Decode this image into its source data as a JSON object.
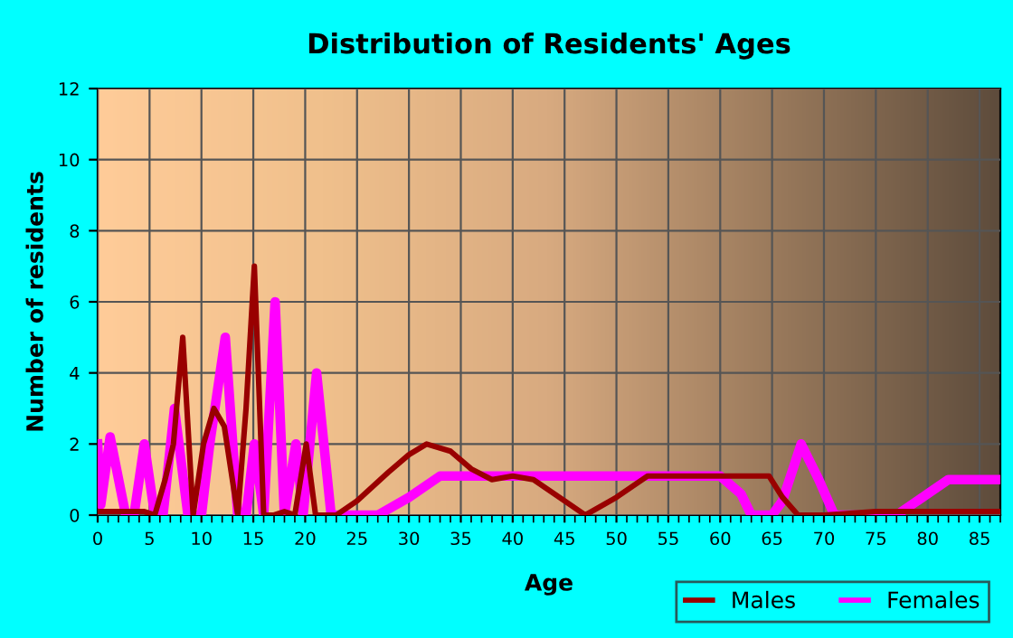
{
  "chart_data": {
    "type": "line",
    "title": "Distribution of Residents' Ages",
    "xlabel": "Age",
    "ylabel": "Number of residents",
    "xlim": [
      0,
      87
    ],
    "xticks": [
      0,
      5,
      10,
      15,
      20,
      25,
      30,
      35,
      40,
      45,
      50,
      55,
      60,
      65,
      70,
      75,
      80,
      85
    ],
    "ylim": [
      0,
      12
    ],
    "yticks": [
      0,
      2,
      4,
      6,
      8,
      10,
      12
    ],
    "grid": true,
    "legend": "bottom right",
    "marker": "none",
    "line_style": "solid",
    "series": [
      {
        "name": "Males",
        "color": "#990000",
        "x": [
          0,
          1,
          3,
          4.5,
          5.5,
          6.5,
          7.3,
          8.2,
          9.2,
          10.2,
          11.2,
          12.2,
          13.5,
          14.3,
          15.1,
          16,
          17,
          18,
          19,
          20.1,
          21,
          22,
          23,
          25,
          28,
          30,
          31.7,
          34,
          36,
          38,
          40,
          42,
          45,
          47,
          50,
          53,
          55,
          60,
          63,
          64.7,
          66,
          67.5,
          70,
          75,
          80,
          87
        ],
        "values": [
          0.1,
          0.1,
          0.1,
          0.1,
          0,
          1,
          2,
          5,
          0,
          2,
          3,
          2.5,
          0,
          3,
          7,
          0,
          0,
          0.1,
          0,
          2,
          0,
          0,
          0,
          0.4,
          1.2,
          1.7,
          2,
          1.8,
          1.3,
          1,
          1.1,
          1,
          0.4,
          0,
          0.5,
          1.1,
          1.1,
          1.1,
          1.1,
          1.1,
          0.5,
          0,
          0,
          0.1,
          0.1,
          0.1
        ]
      },
      {
        "name": "Females",
        "color": "#ff00ff",
        "x": [
          0,
          0.3,
          1.2,
          2.7,
          3.5,
          4.5,
          5.5,
          6.3,
          7.4,
          8.7,
          10,
          10.8,
          12.3,
          13.5,
          14.3,
          15.1,
          16,
          17.1,
          18,
          19.1,
          19.8,
          21.1,
          22.5,
          27,
          30,
          33,
          36,
          40,
          60,
          62,
          63,
          65,
          66,
          67.8,
          69.5,
          71,
          77,
          80,
          82,
          87
        ],
        "values": [
          2,
          0.3,
          2.2,
          0,
          0,
          2,
          0,
          0,
          3,
          0,
          0,
          2,
          5,
          0,
          0,
          2,
          0,
          6,
          0,
          2,
          0,
          4,
          0,
          0,
          0.5,
          1.1,
          1.1,
          1.1,
          1.1,
          0.6,
          0,
          0,
          0.4,
          2,
          1,
          0,
          0,
          0.6,
          1,
          1
        ]
      }
    ]
  }
}
